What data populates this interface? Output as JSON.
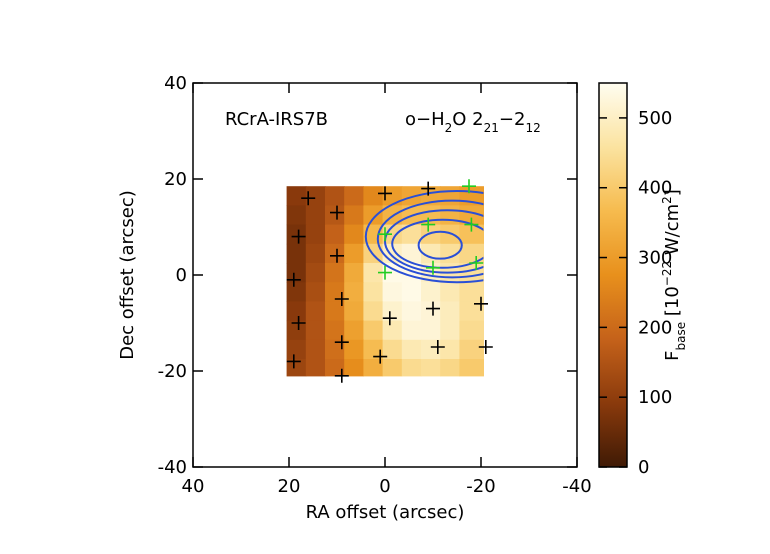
{
  "chart_data": {
    "type": "heatmap",
    "annotations": {
      "object": "RCrA-IRS7B",
      "line": [
        {
          "text": "o−H"
        },
        {
          "text": "2",
          "pos": "sub"
        },
        {
          "text": "O 2"
        },
        {
          "text": "21",
          "pos": "sub"
        },
        {
          "text": "−2"
        },
        {
          "text": "12",
          "pos": "sub"
        }
      ]
    },
    "xlabel": "RA offset (arcsec)",
    "ylabel": "Dec offset (arcsec)",
    "xlim": [
      40,
      -40
    ],
    "ylim": [
      -40,
      40
    ],
    "xticks": [
      40,
      20,
      0,
      -20,
      -40
    ],
    "yticks": [
      -40,
      -20,
      0,
      20,
      40
    ],
    "x_edges": [
      20.5,
      16.5,
      12.5,
      8.5,
      4.5,
      0.5,
      -3.5,
      -7.5,
      -11.5,
      -15.5,
      -20.5
    ],
    "y_edges": [
      18.5,
      14.5,
      10.5,
      6.5,
      2.5,
      -1.5,
      -5.5,
      -9.5,
      -13.5,
      -17.5,
      -21
    ],
    "values": [
      [
        90,
        110,
        150,
        200,
        260,
        300,
        320,
        330,
        320,
        300
      ],
      [
        80,
        110,
        160,
        230,
        300,
        350,
        370,
        370,
        350,
        330
      ],
      [
        70,
        110,
        180,
        260,
        360,
        430,
        450,
        420,
        400,
        380
      ],
      [
        70,
        120,
        200,
        300,
        420,
        500,
        520,
        480,
        450,
        430
      ],
      [
        70,
        130,
        220,
        330,
        470,
        540,
        540,
        500,
        470,
        450
      ],
      [
        80,
        140,
        230,
        340,
        460,
        530,
        540,
        510,
        480,
        450
      ],
      [
        90,
        150,
        230,
        330,
        440,
        510,
        530,
        520,
        490,
        450
      ],
      [
        100,
        150,
        220,
        310,
        400,
        480,
        520,
        520,
        490,
        440
      ],
      [
        110,
        150,
        210,
        290,
        370,
        440,
        480,
        490,
        470,
        420
      ],
      [
        120,
        150,
        200,
        270,
        340,
        400,
        440,
        450,
        430,
        400
      ]
    ],
    "zlim": [
      0,
      550
    ],
    "zticks": [
      0,
      100,
      200,
      300,
      400,
      500
    ],
    "colormap": [
      "#3f1a05",
      "#8a3a0c",
      "#c5621a",
      "#e8901c",
      "#f6bb4e",
      "#fbe3a0",
      "#fffdf0"
    ],
    "colorbar_label": [
      {
        "text": "F"
      },
      {
        "text": "base",
        "pos": "sub"
      },
      {
        "text": " [10"
      },
      {
        "text": "−22",
        "pos": "sup"
      },
      {
        "text": " W/cm"
      },
      {
        "text": "2",
        "pos": "sup"
      },
      {
        "text": "]"
      }
    ],
    "contours": {
      "color": "#2a4fd6",
      "ellipses": [
        {
          "ra": -11.5,
          "dec": 6.2,
          "ra_radius": 4.5,
          "dec_radius": 2.8
        },
        {
          "ra": -12,
          "dec": 6.5,
          "ra_radius": 10.5,
          "dec_radius": 5
        },
        {
          "ra": -13,
          "dec": 7,
          "ra_radius": 13,
          "dec_radius": 6.5
        },
        {
          "ra": -14,
          "dec": 7.5,
          "ra_radius": 15.5,
          "dec_radius": 8
        },
        {
          "ra": -15,
          "dec": 8,
          "ra_radius": 19,
          "dec_radius": 9.5
        }
      ]
    },
    "markers": [
      {
        "color": "#000000",
        "ra": [
          16,
          10,
          18,
          10,
          19,
          9,
          18,
          9,
          19,
          9,
          0,
          -9,
          -1,
          -10,
          1,
          -11,
          -20,
          -21
        ],
        "dec": [
          16,
          13,
          8,
          4,
          -1,
          -5,
          -10,
          -14,
          -18,
          -21,
          17,
          18,
          -9,
          -7,
          -17,
          -15,
          -6,
          -15
        ]
      },
      {
        "color": "#22cc22",
        "ra": [
          -17.5,
          0,
          -9,
          -18,
          0,
          -10,
          -19
        ],
        "dec": [
          18.5,
          8.5,
          10.5,
          10.5,
          0.5,
          1.5,
          2.5
        ]
      }
    ]
  }
}
